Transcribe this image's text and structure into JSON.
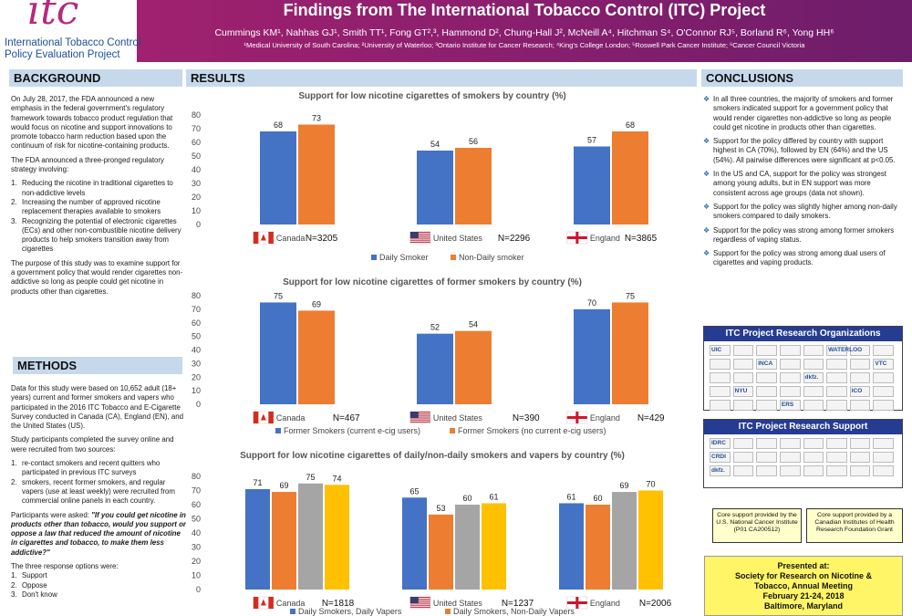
{
  "header": {
    "logo_text": "itc",
    "logo_line1": "International Tobacco Control",
    "logo_line2": "Policy Evaluation Project",
    "title": "Findings from The International Tobacco Control (ITC) Project",
    "authors": "Cummings KM¹, Nahhas GJ¹, Smith TT¹, Fong GT²,³, Hammond D², Chung-Hall J², McNeill A⁴, Hitchman S⁴, O'Connor RJ⁵, Borland R⁶, Yong HH⁶",
    "affiliations": "¹Medical University of South Carolina; ²University of Waterloo; ³Ontario Institute for Cancer Research; ⁴King's College London; ⁵Roswell Park Cancer Institute; ⁶Cancer Council Victoria"
  },
  "background": {
    "heading": "BACKGROUND",
    "p1": "On July 28, 2017, the FDA announced a new emphasis in the federal government's regulatory framework towards tobacco product regulation that would focus on nicotine and support innovations to promote tobacco harm reduction based upon the continuum of risk for nicotine-containing products.",
    "p2": "The FDA announced a three-pronged regulatory strategy involving:",
    "items": [
      {
        "num": "1.",
        "text": "Reducing the nicotine in traditional cigarettes to non-addictive levels"
      },
      {
        "num": "2.",
        "text": "Increasing the number of approved nicotine replacement therapies available to smokers"
      },
      {
        "num": "3.",
        "text": "Recognizing the potential of electronic cigarettes (ECs) and other non-combustible nicotine delivery products to help smokers transition away from cigarettes"
      }
    ],
    "p3": "The purpose of this study was to examine support for a government policy that would render cigarettes non-addictive so long as people could get nicotine in products other than cigarettes."
  },
  "methods": {
    "heading": "METHODS",
    "p1": "Data for this study were based on 10,652 adult (18+ years) current and former smokers and vapers who participated in the 2016 ITC Tobacco and E-Cigarette Survey conducted in Canada (CA), England (EN), and the United States (US).",
    "p2": "Study participants completed the survey online and were recruited from two sources:",
    "items": [
      {
        "num": "1.",
        "text": "re-contact smokers and recent quitters who participated in previous ITC surveys"
      },
      {
        "num": "2.",
        "text": "smokers, recent former smokers, and regular vapers (use at least weekly) were recruited from commercial online panels in each country."
      }
    ],
    "p3_lead": "Participants were asked: ",
    "p3_quote": "\"If you could get nicotine in products other than tobacco, would you support or oppose a law that reduced the amount of nicotine in cigarettes and tobacco, to make them less addictive?\"",
    "p4": "The three response options were:",
    "options": [
      {
        "num": "1.",
        "text": "Support"
      },
      {
        "num": "2.",
        "text": "Oppose"
      },
      {
        "num": "3.",
        "text": "Don't know"
      }
    ]
  },
  "results": {
    "heading": "RESULTS"
  },
  "chart_data": [
    {
      "type": "bar",
      "title": "Support for low nicotine cigarettes of smokers by country (%)",
      "categories": [
        "Canada",
        "United States",
        "England"
      ],
      "sample_sizes": [
        "N=3205",
        "N=2296",
        "N=3865"
      ],
      "series": [
        {
          "name": "Daily Smoker",
          "values": [
            68,
            54,
            57
          ],
          "color": "#4472c4"
        },
        {
          "name": "Non-Daily smoker",
          "values": [
            73,
            56,
            68
          ],
          "color": "#ed7d31"
        }
      ],
      "ylim": [
        0,
        80
      ],
      "yticks": [
        "0",
        "10",
        "20",
        "30",
        "40",
        "50",
        "60",
        "70",
        "80"
      ],
      "legend": "bottom"
    },
    {
      "type": "bar",
      "title": "Support for low nicotine cigarettes of former smokers by country (%)",
      "categories": [
        "Canada",
        "United States",
        "England"
      ],
      "sample_sizes": [
        "N=467",
        "N=390",
        "N=429"
      ],
      "series": [
        {
          "name": "Former Smokers (current e-cig users)",
          "values": [
            75,
            52,
            70
          ],
          "color": "#4472c4"
        },
        {
          "name": "Former Smokers (no current e-cig users)",
          "values": [
            69,
            54,
            75
          ],
          "color": "#ed7d31"
        }
      ],
      "ylim": [
        0,
        80
      ],
      "yticks": [
        "0",
        "10",
        "20",
        "30",
        "40",
        "50",
        "60",
        "70",
        "80"
      ],
      "legend": "bottom"
    },
    {
      "type": "bar",
      "title": "Support for low nicotine cigarettes of daily/non-daily smokers and vapers by country (%)",
      "categories": [
        "Canada",
        "United States",
        "England"
      ],
      "sample_sizes": [
        "N=1818",
        "N=1237",
        "N=2006"
      ],
      "series": [
        {
          "name": "Daily Smokers, Daily Vapers",
          "values": [
            71,
            65,
            61
          ],
          "color": "#4472c4"
        },
        {
          "name": "Daily Smokers, Non-Daily Vapers",
          "values": [
            69,
            53,
            60
          ],
          "color": "#ed7d31"
        },
        {
          "name": "",
          "values": [
            75,
            60,
            69
          ],
          "color": "#a5a5a5"
        },
        {
          "name": "",
          "values": [
            74,
            61,
            70
          ],
          "color": "#ffc000"
        }
      ],
      "ylim": [
        0,
        80
      ],
      "yticks": [
        "0",
        "10",
        "20",
        "30",
        "40",
        "50",
        "60",
        "70",
        "80"
      ],
      "legend": "bottom"
    }
  ],
  "conclusions": {
    "heading": "CONCLUSIONS",
    "items": [
      "In all three countries, the majority of smokers and former smokers indicated support for a government policy that would render cigarettes non-addictive so long as people could get nicotine in products other than cigarettes.",
      "Support for the policy differed by country with support highest in CA (70%), followed by EN (64%) and the US (54%). All pairwise differences were significant at p<0.05.",
      "In the US and CA, support for the policy was strongest among young adults, but in EN support was more consistent across age groups (data not shown).",
      "Support for the policy was slightly higher among non-daily smokers compared to daily smokers.",
      "Support for the policy was strong among former smokers regardless of vaping status.",
      "Support for the policy was strong among dual users of cigarettes and vaping products."
    ]
  },
  "orgs": {
    "title": "ITC Project Research Organizations",
    "logo_text": [
      "UIC",
      "WATERLOO",
      "INCA",
      "VTC",
      "dkfz.",
      "NYU",
      "ICO",
      "ERS"
    ]
  },
  "support": {
    "title": "ITC Project Research Support",
    "logo_text": [
      "IDRC",
      "CRDI",
      "dkfz."
    ],
    "note1": "Core support provided by the U.S. National Cancer Institute (P01 CA200512)",
    "note2": "Core support provided by a Canadian Institutes of Health Research Foundation Grant"
  },
  "presented": {
    "line1": "Presented at:",
    "line2": "Society for Research on Nicotine &",
    "line3": "Tobacco,  Annual Meeting",
    "line4": "February 21-24, 2018",
    "line5": "Baltimore, Maryland"
  },
  "colors": {
    "header": "#8a1f6e",
    "section_bg": "#c6d9ec",
    "org_title": "#263c92"
  }
}
